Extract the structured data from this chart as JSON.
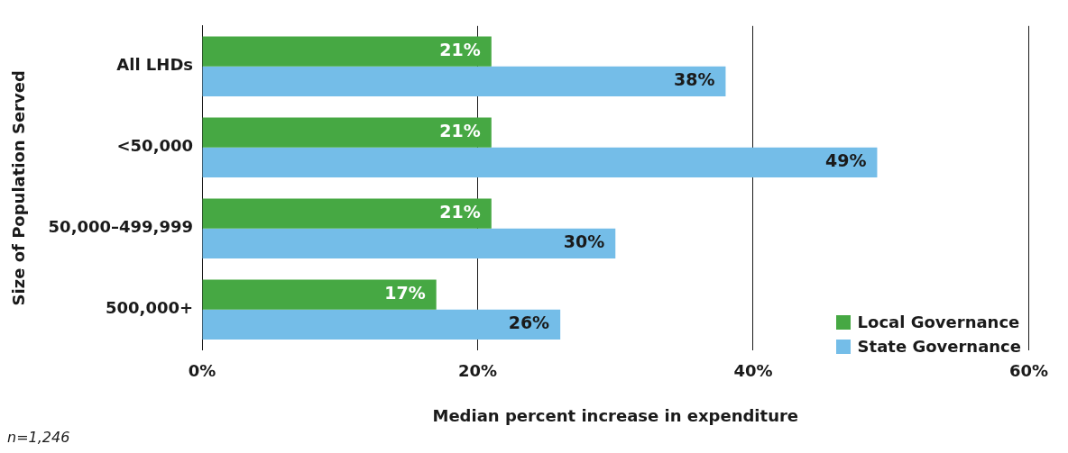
{
  "chart_data": {
    "type": "bar",
    "orientation": "horizontal",
    "xlabel": "Median percent increase in expenditure",
    "ylabel": "Size of Population Served",
    "categories": [
      "All LHDs",
      "<50,000",
      "50,000–499,999",
      "500,000+"
    ],
    "series": [
      {
        "name": "Local Governance",
        "color": "#46a843",
        "values": [
          21,
          21,
          21,
          17
        ],
        "value_labels": [
          "21%",
          "21%",
          "21%",
          "17%"
        ]
      },
      {
        "name": "State Governance",
        "color": "#74bde8",
        "values": [
          38,
          49,
          30,
          26
        ],
        "value_labels": [
          "38%",
          "49%",
          "30%",
          "26%"
        ]
      }
    ],
    "xlim": [
      0,
      60
    ],
    "xticks": [
      {
        "value": 0,
        "label": "0%"
      },
      {
        "value": 20,
        "label": "20%"
      },
      {
        "value": 40,
        "label": "40%"
      },
      {
        "value": 60,
        "label": "60%"
      }
    ],
    "grid": "x",
    "legend": "bottom right",
    "annotations": [
      "n=1,246"
    ]
  }
}
